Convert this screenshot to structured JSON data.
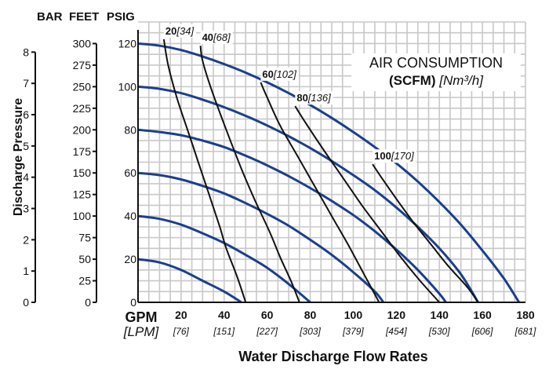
{
  "chart_data": {
    "type": "line",
    "title": "AIR CONSUMPTION",
    "subtitle_bold": "(SCFM)",
    "subtitle_italic": "[Nm³/h]",
    "xlabel": "Water Discharge Flow Rates",
    "ylabel": "Discharge Pressure",
    "x_unit_gpm": "GPM",
    "x_unit_lpm": "[LPM]",
    "unit_bar": "BAR",
    "unit_feet": "FEET",
    "unit_psig": "PSIG",
    "xlim": [
      0,
      180
    ],
    "ylim": [
      0,
      130
    ],
    "x_ticks": [
      {
        "gpm": "20",
        "lpm": "[76]"
      },
      {
        "gpm": "40",
        "lpm": "[151]"
      },
      {
        "gpm": "60",
        "lpm": "[227]"
      },
      {
        "gpm": "80",
        "lpm": "[303]"
      },
      {
        "gpm": "100",
        "lpm": "[379]"
      },
      {
        "gpm": "120",
        "lpm": "[454]"
      },
      {
        "gpm": "140",
        "lpm": "[530]"
      },
      {
        "gpm": "160",
        "lpm": "[606]"
      },
      {
        "gpm": "180",
        "lpm": "[681]"
      }
    ],
    "psi_ticks": [
      "0",
      "20",
      "40",
      "60",
      "80",
      "100",
      "120"
    ],
    "feet_ticks": [
      "0",
      "25",
      "50",
      "75",
      "100",
      "125",
      "150",
      "175",
      "200",
      "225",
      "250",
      "275",
      "300"
    ],
    "bar_ticks": [
      "0",
      "1",
      "2",
      "3",
      "4",
      "5",
      "6",
      "7",
      "8"
    ],
    "curves_head": [
      {
        "points": [
          [
            0,
            20
          ],
          [
            10,
            18.5
          ],
          [
            20,
            15
          ],
          [
            30,
            10
          ],
          [
            40,
            5
          ],
          [
            48,
            0
          ]
        ]
      },
      {
        "points": [
          [
            0,
            40
          ],
          [
            10,
            38.7
          ],
          [
            20,
            36
          ],
          [
            30,
            32
          ],
          [
            40,
            27.5
          ],
          [
            50,
            22
          ],
          [
            60,
            16
          ],
          [
            70,
            8.5
          ],
          [
            80,
            0
          ]
        ]
      },
      {
        "points": [
          [
            0,
            60
          ],
          [
            10,
            59
          ],
          [
            20,
            57
          ],
          [
            30,
            54
          ],
          [
            40,
            50.5
          ],
          [
            50,
            46
          ],
          [
            60,
            41
          ],
          [
            70,
            35.5
          ],
          [
            80,
            29
          ],
          [
            90,
            22
          ],
          [
            100,
            14
          ],
          [
            110,
            5
          ],
          [
            114,
            0
          ]
        ]
      },
      {
        "points": [
          [
            0,
            80
          ],
          [
            10,
            79
          ],
          [
            20,
            77.5
          ],
          [
            30,
            75
          ],
          [
            40,
            72
          ],
          [
            50,
            68
          ],
          [
            60,
            63.5
          ],
          [
            70,
            58.5
          ],
          [
            80,
            53
          ],
          [
            90,
            47
          ],
          [
            100,
            40.5
          ],
          [
            110,
            33
          ],
          [
            120,
            24.5
          ],
          [
            130,
            15
          ],
          [
            140,
            4
          ],
          [
            143,
            0
          ]
        ]
      },
      {
        "points": [
          [
            0,
            100
          ],
          [
            10,
            99
          ],
          [
            20,
            97
          ],
          [
            30,
            94
          ],
          [
            40,
            90.5
          ],
          [
            50,
            86.5
          ],
          [
            60,
            82
          ],
          [
            70,
            77
          ],
          [
            80,
            71.5
          ],
          [
            90,
            65.5
          ],
          [
            100,
            59
          ],
          [
            110,
            52
          ],
          [
            120,
            44
          ],
          [
            130,
            35
          ],
          [
            140,
            25
          ],
          [
            150,
            13
          ],
          [
            158,
            0
          ]
        ]
      },
      {
        "points": [
          [
            0,
            120
          ],
          [
            10,
            119
          ],
          [
            20,
            117
          ],
          [
            30,
            114
          ],
          [
            40,
            110.5
          ],
          [
            50,
            106.5
          ],
          [
            60,
            102
          ],
          [
            70,
            97
          ],
          [
            80,
            91.5
          ],
          [
            90,
            85.5
          ],
          [
            100,
            79
          ],
          [
            110,
            72
          ],
          [
            120,
            64.5
          ],
          [
            130,
            56
          ],
          [
            140,
            46.5
          ],
          [
            150,
            36
          ],
          [
            160,
            24
          ],
          [
            170,
            11
          ],
          [
            177,
            0
          ]
        ]
      }
    ],
    "curves_air": [
      {
        "scfm": "20",
        "nm3h": "[34]",
        "points": [
          [
            12,
            122
          ],
          [
            14,
            110
          ],
          [
            18,
            95
          ],
          [
            23,
            80
          ],
          [
            28,
            65
          ],
          [
            33,
            50
          ],
          [
            38,
            35
          ],
          [
            41,
            25
          ],
          [
            46,
            12
          ],
          [
            50,
            0
          ]
        ]
      },
      {
        "scfm": "40",
        "nm3h": "[68]",
        "points": [
          [
            29,
            119
          ],
          [
            30,
            112
          ],
          [
            34,
            99
          ],
          [
            41,
            80
          ],
          [
            48,
            62
          ],
          [
            54,
            48
          ],
          [
            61,
            33
          ],
          [
            66,
            21
          ],
          [
            71,
            10
          ],
          [
            75,
            0
          ]
        ]
      },
      {
        "scfm": "60",
        "nm3h": "[102]",
        "points": [
          [
            57,
            102
          ],
          [
            60,
            95
          ],
          [
            66,
            82
          ],
          [
            74,
            68
          ],
          [
            82,
            54
          ],
          [
            90,
            40
          ],
          [
            98,
            26
          ],
          [
            105,
            13
          ],
          [
            112,
            0
          ]
        ]
      },
      {
        "scfm": "80",
        "nm3h": "[136]",
        "points": [
          [
            73,
            91
          ],
          [
            78,
            83
          ],
          [
            86,
            71
          ],
          [
            95,
            58
          ],
          [
            104,
            45
          ],
          [
            113,
            33
          ],
          [
            122,
            21
          ],
          [
            131,
            10
          ],
          [
            140,
            0
          ]
        ]
      },
      {
        "scfm": "100",
        "nm3h": "[170]",
        "points": [
          [
            109,
            64
          ],
          [
            113,
            58
          ],
          [
            120,
            48
          ],
          [
            128,
            37
          ],
          [
            136,
            27
          ],
          [
            144,
            17
          ],
          [
            153,
            7
          ],
          [
            158,
            0
          ]
        ]
      }
    ]
  }
}
